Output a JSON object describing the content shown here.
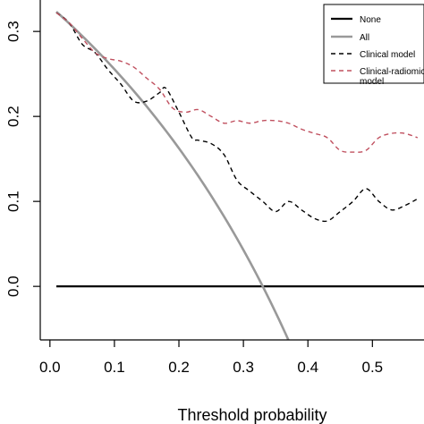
{
  "chart_data": {
    "type": "line",
    "title": "",
    "xlabel": "Threshold probability",
    "ylabel": "",
    "xlim": [
      -0.015,
      0.58
    ],
    "ylim": [
      -0.063,
      0.337
    ],
    "x_ticks": [
      0.0,
      0.1,
      0.2,
      0.3,
      0.4,
      0.5
    ],
    "x_tick_labels": [
      "0.0",
      "0.1",
      "0.2",
      "0.3",
      "0.4",
      "0.5"
    ],
    "y_ticks": [
      0.0,
      0.1,
      0.2,
      0.3
    ],
    "y_tick_labels": [
      "0.0",
      "0.1",
      "0.2",
      "0.3"
    ],
    "grid": false,
    "legend_position": "top-right",
    "series": [
      {
        "name": "None",
        "color": "#000000",
        "dash": "solid",
        "x": [
          0.01,
          0.58
        ],
        "y": [
          0.0,
          0.0
        ]
      },
      {
        "name": "All",
        "color": "#999999",
        "dash": "solid",
        "prevalence": 0.33
      },
      {
        "name": "Clinical model",
        "color": "#000000",
        "dash": "dashed",
        "x": [
          0.01,
          0.03,
          0.05,
          0.07,
          0.09,
          0.11,
          0.13,
          0.15,
          0.17,
          0.18,
          0.2,
          0.22,
          0.23,
          0.25,
          0.27,
          0.29,
          0.31,
          0.33,
          0.35,
          0.37,
          0.39,
          0.41,
          0.43,
          0.45,
          0.47,
          0.49,
          0.51,
          0.53,
          0.55,
          0.57
        ],
        "y": [
          0.322,
          0.31,
          0.285,
          0.275,
          0.255,
          0.238,
          0.218,
          0.218,
          0.228,
          0.233,
          0.205,
          0.175,
          0.172,
          0.168,
          0.155,
          0.125,
          0.112,
          0.1,
          0.088,
          0.1,
          0.09,
          0.08,
          0.077,
          0.088,
          0.1,
          0.115,
          0.1,
          0.09,
          0.095,
          0.103
        ]
      },
      {
        "name": "Clinical-radiomics model",
        "color": "#c0505f",
        "dash": "dashed",
        "x": [
          0.01,
          0.03,
          0.05,
          0.07,
          0.09,
          0.11,
          0.13,
          0.15,
          0.17,
          0.19,
          0.21,
          0.23,
          0.25,
          0.27,
          0.29,
          0.31,
          0.33,
          0.35,
          0.37,
          0.39,
          0.41,
          0.43,
          0.45,
          0.47,
          0.49,
          0.51,
          0.53,
          0.55,
          0.57
        ],
        "y": [
          0.322,
          0.31,
          0.292,
          0.275,
          0.268,
          0.265,
          0.258,
          0.245,
          0.232,
          0.21,
          0.205,
          0.208,
          0.2,
          0.192,
          0.195,
          0.192,
          0.195,
          0.195,
          0.192,
          0.185,
          0.18,
          0.175,
          0.16,
          0.158,
          0.16,
          0.175,
          0.18,
          0.18,
          0.175
        ]
      }
    ],
    "legend_entries": [
      "None",
      "All",
      "Clinical model",
      "Clinical-radiomics\nmodel"
    ]
  }
}
